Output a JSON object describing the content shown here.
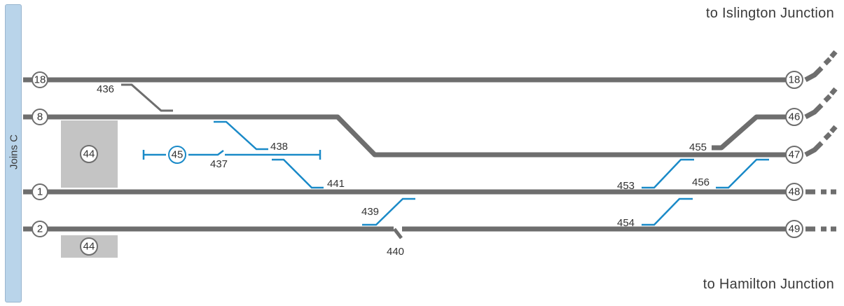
{
  "captions": {
    "top": "to Islington Junction",
    "bottom": "to Hamilton Junction",
    "side": "Joins C"
  },
  "track_numbers": {
    "t18_left": "18",
    "t8": "8",
    "t1": "1",
    "t2": "2",
    "t18_right": "18",
    "t46": "46",
    "t47": "47",
    "t48": "48",
    "t49": "49"
  },
  "platforms": {
    "upper": "44",
    "lower": "44"
  },
  "siding": "45",
  "points": {
    "p436": "436",
    "p437": "437",
    "p438": "438",
    "p439": "439",
    "p440": "440",
    "p441": "441",
    "p453": "453",
    "p454": "454",
    "p455": "455",
    "p456": "456"
  },
  "colors": {
    "track": "#6e6e6e",
    "blue": "#1a8ac8",
    "platform": "#c4c4c4",
    "side_bar": "#b9d4ea"
  }
}
